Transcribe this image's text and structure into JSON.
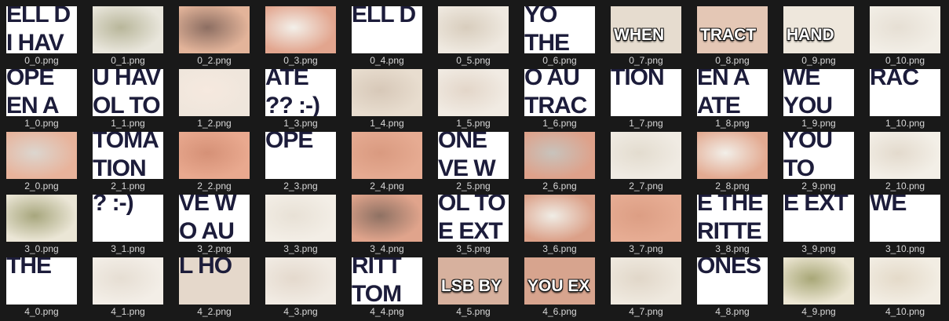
{
  "files": [
    {
      "name": "0_0.png",
      "bg": "#ffffff",
      "text": "ELL D",
      "text2": "I HAV",
      "kind": "text"
    },
    {
      "name": "0_1.png",
      "bg": "#e9e6dc",
      "kind": "photo",
      "accent": "#b8b69a"
    },
    {
      "name": "0_2.png",
      "bg": "#e3b49a",
      "kind": "photo",
      "accent": "#8c6e62"
    },
    {
      "name": "0_3.png",
      "bg": "#e2a58e",
      "kind": "photo",
      "accent": "#f3f0ea"
    },
    {
      "name": "0_4.png",
      "bg": "#ffffff",
      "text": "ELL D",
      "kind": "text"
    },
    {
      "name": "0_5.png",
      "bg": "#efe9e0",
      "kind": "photo",
      "accent": "#d8cdbd"
    },
    {
      "name": "0_6.png",
      "bg": "#ffffff",
      "text": "YO",
      "text2": "THE",
      "kind": "text"
    },
    {
      "name": "0_7.png",
      "bg": "#e6dccf",
      "meme": "WHEN",
      "kind": "meme"
    },
    {
      "name": "0_8.png",
      "bg": "#e4c7b5",
      "meme": "TRACT",
      "kind": "meme"
    },
    {
      "name": "0_9.png",
      "bg": "#eee7dc",
      "meme": "HAND",
      "kind": "meme"
    },
    {
      "name": "0_10.png",
      "bg": "#f2eee6",
      "kind": "photo",
      "accent": "#e6dfd4"
    },
    {
      "name": "1_0.png",
      "bg": "#ffffff",
      "text": "OPE",
      "text2": "EN A",
      "kind": "text"
    },
    {
      "name": "1_1.png",
      "bg": "#ffffff",
      "text": "U HAV",
      "text2": "OL TO",
      "kind": "text"
    },
    {
      "name": "1_2.png",
      "bg": "#efe6dc",
      "kind": "photo",
      "accent": "#f6e9df"
    },
    {
      "name": "1_3.png",
      "bg": "#ffffff",
      "text": "ATE",
      "text2": "?? :-)",
      "kind": "text"
    },
    {
      "name": "1_4.png",
      "bg": "#e8ddcf",
      "kind": "photo",
      "accent": "#d7c8b8"
    },
    {
      "name": "1_5.png",
      "bg": "#f1ebe3",
      "kind": "photo",
      "accent": "#e3d6c9"
    },
    {
      "name": "1_6.png",
      "bg": "#ffffff",
      "text": "O AU",
      "text2": "TRAC",
      "kind": "text"
    },
    {
      "name": "1_7.png",
      "bg": "#ffffff",
      "text": "TION",
      "kind": "text"
    },
    {
      "name": "1_8.png",
      "bg": "#ffffff",
      "text": "EN A",
      "text2": "ATE",
      "kind": "text"
    },
    {
      "name": "1_9.png",
      "bg": "#ffffff",
      "text": "WE",
      "text2": "YOU",
      "kind": "text"
    },
    {
      "name": "1_10.png",
      "bg": "#ffffff",
      "text": "RAC",
      "kind": "text"
    },
    {
      "name": "2_0.png",
      "bg": "#e8b39b",
      "kind": "photo",
      "accent": "#dcd6cf"
    },
    {
      "name": "2_1.png",
      "bg": "#ffffff",
      "text": "TOMA",
      "text2": "TION",
      "kind": "text"
    },
    {
      "name": "2_2.png",
      "bg": "#e9a98f",
      "kind": "photo",
      "accent": "#d59177"
    },
    {
      "name": "2_3.png",
      "bg": "#ffffff",
      "text": "OPE",
      "kind": "text"
    },
    {
      "name": "2_4.png",
      "bg": "#e6ab92",
      "kind": "photo",
      "accent": "#d99a80"
    },
    {
      "name": "2_5.png",
      "bg": "#ffffff",
      "text": "ONE",
      "text2": "VE W",
      "kind": "text"
    },
    {
      "name": "2_6.png",
      "bg": "#dea18a",
      "kind": "photo",
      "accent": "#c8c3bc"
    },
    {
      "name": "2_7.png",
      "bg": "#f0ebe3",
      "kind": "photo",
      "accent": "#e3dccf"
    },
    {
      "name": "2_8.png",
      "bg": "#e3aa91",
      "kind": "photo",
      "accent": "#f2efe9"
    },
    {
      "name": "2_9.png",
      "bg": "#ffffff",
      "text": "YOU",
      "text2": "TO",
      "kind": "text"
    },
    {
      "name": "2_10.png",
      "bg": "#f3efe7",
      "kind": "photo",
      "accent": "#e3dacd"
    },
    {
      "name": "3_0.png",
      "bg": "#ebe6d6",
      "kind": "photo",
      "accent": "#a7a67d"
    },
    {
      "name": "3_1.png",
      "bg": "#ffffff",
      "text": "? :-)",
      "kind": "text"
    },
    {
      "name": "3_2.png",
      "bg": "#ffffff",
      "text": "VE W",
      "text2": "O AU",
      "kind": "text"
    },
    {
      "name": "3_3.png",
      "bg": "#f3eee6",
      "kind": "photo",
      "accent": "#e8e1d6"
    },
    {
      "name": "3_4.png",
      "bg": "#e0a48c",
      "kind": "photo",
      "accent": "#8e7163"
    },
    {
      "name": "3_5.png",
      "bg": "#ffffff",
      "text": "OL TO",
      "text2": "E EXT",
      "kind": "text"
    },
    {
      "name": "3_6.png",
      "bg": "#dba088",
      "kind": "photo",
      "accent": "#f0ede6"
    },
    {
      "name": "3_7.png",
      "bg": "#e7ad94",
      "kind": "photo",
      "accent": "#dc9e84"
    },
    {
      "name": "3_8.png",
      "bg": "#ffffff",
      "text": "E THE",
      "text2": "RITTE",
      "kind": "text"
    },
    {
      "name": "3_9.png",
      "bg": "#ffffff",
      "text": "E EXT",
      "kind": "text"
    },
    {
      "name": "3_10.png",
      "bg": "#ffffff",
      "text": "WE",
      "kind": "text"
    },
    {
      "name": "4_0.png",
      "bg": "#ffffff",
      "text": "THE",
      "kind": "text"
    },
    {
      "name": "4_1.png",
      "bg": "#f3eee7",
      "kind": "photo",
      "accent": "#e6ded3"
    },
    {
      "name": "4_2.png",
      "bg": "#e5d8cb",
      "text": "L HO",
      "kind": "text"
    },
    {
      "name": "4_3.png",
      "bg": "#f1ebe3",
      "kind": "photo",
      "accent": "#e4d9cd"
    },
    {
      "name": "4_4.png",
      "bg": "#ffffff",
      "text": "RITT",
      "text2": "TOM",
      "kind": "text"
    },
    {
      "name": "4_5.png",
      "bg": "#d7b19e",
      "meme": "LSB BY",
      "kind": "meme"
    },
    {
      "name": "4_6.png",
      "bg": "#d7a48e",
      "meme": "YOU EX",
      "kind": "meme"
    },
    {
      "name": "4_7.png",
      "bg": "#efe9df",
      "kind": "photo",
      "accent": "#e1d7c9"
    },
    {
      "name": "4_8.png",
      "bg": "#ffffff",
      "text": "ONES",
      "kind": "text"
    },
    {
      "name": "4_9.png",
      "bg": "#ece6d3",
      "kind": "photo",
      "accent": "#a8a777"
    },
    {
      "name": "4_10.png",
      "bg": "#f2ede3",
      "kind": "photo",
      "accent": "#e4dac9"
    }
  ]
}
